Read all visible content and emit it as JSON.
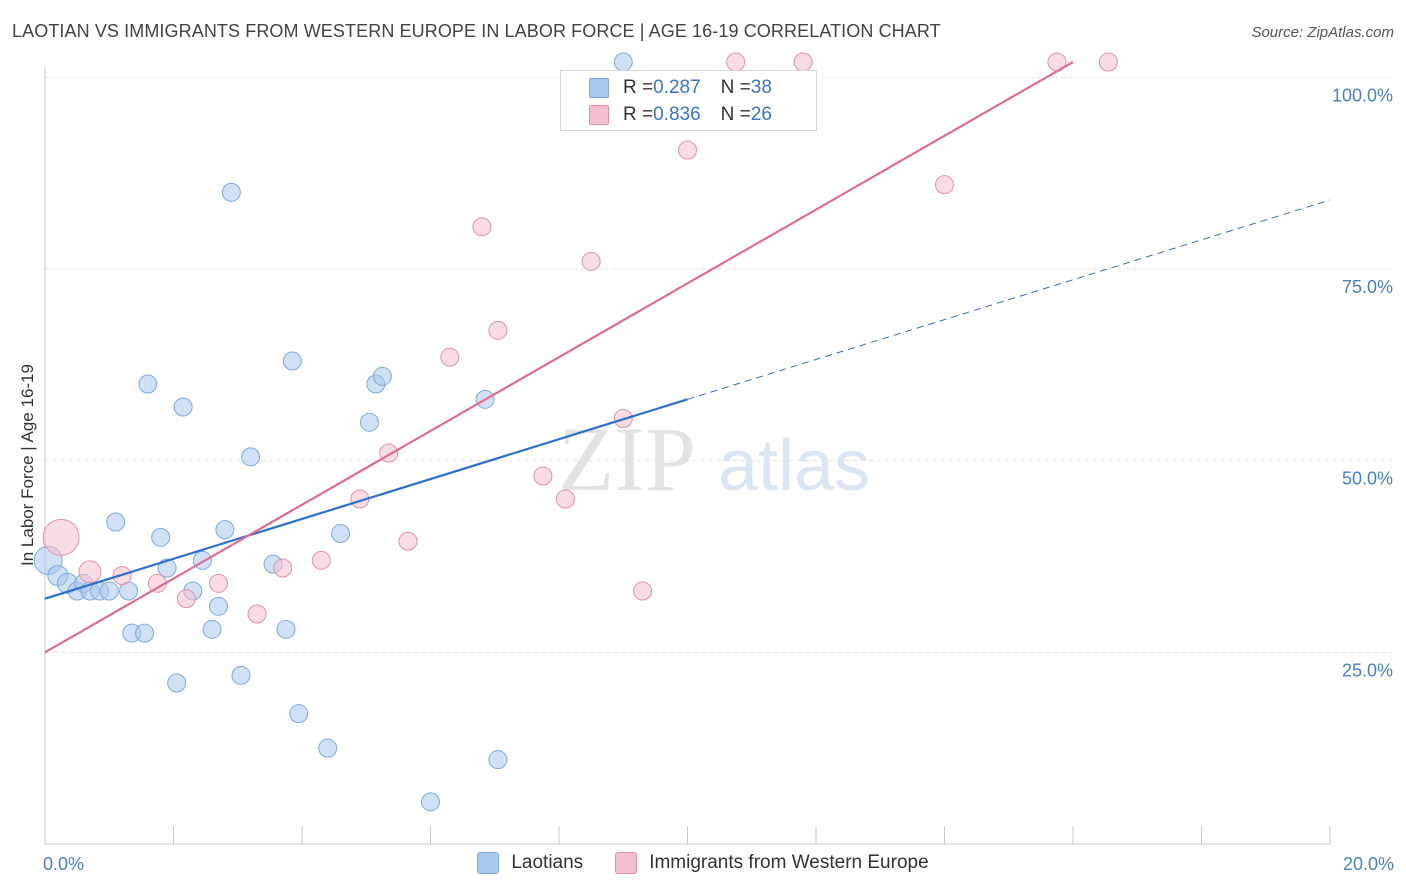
{
  "title": "LAOTIAN VS IMMIGRANTS FROM WESTERN EUROPE IN LABOR FORCE | AGE 16-19 CORRELATION CHART",
  "source": "Source: ZipAtlas.com",
  "watermark": {
    "zip": "ZIP",
    "atlas": "atlas"
  },
  "legend": {
    "rows": [
      {
        "r_label": "R = ",
        "r_value": "0.287",
        "n_label": "N = ",
        "n_value": "38",
        "color": "#a9c8ef",
        "border": "#7ea9de"
      },
      {
        "r_label": "R = ",
        "r_value": "0.836",
        "n_label": "N = ",
        "n_value": "26",
        "color": "#f6bfd0",
        "border": "#e68fab"
      }
    ]
  },
  "bottom_legend": [
    {
      "label": "Laotians",
      "color": "#a9c8ef",
      "border": "#7ea9de"
    },
    {
      "label": "Immigrants from Western Europe",
      "color": "#f6bfd0",
      "border": "#e68fab"
    }
  ],
  "chart_data": {
    "type": "scatter",
    "xlabel": "",
    "ylabel": "In Labor Force | Age 16-19",
    "xlim": [
      0,
      20
    ],
    "ylim": [
      0,
      102
    ],
    "x_tick_labels": [
      {
        "value": 0,
        "label": "0.0%"
      },
      {
        "value": 20,
        "label": "20.0%"
      }
    ],
    "y_tick_labels": [
      {
        "value": 25,
        "label": "25.0%"
      },
      {
        "value": 50,
        "label": "50.0%"
      },
      {
        "value": 75,
        "label": "75.0%"
      },
      {
        "value": 100,
        "label": "100.0%"
      }
    ],
    "grid": true,
    "series": [
      {
        "name": "Laotians",
        "color": "#a9c8ef",
        "line_color": "#2f6fcc",
        "points": [
          [
            0.05,
            37,
            14
          ],
          [
            0.2,
            35,
            10
          ],
          [
            0.35,
            34,
            10
          ],
          [
            0.5,
            33,
            9
          ],
          [
            0.6,
            34,
            9
          ],
          [
            0.7,
            33,
            9
          ],
          [
            0.85,
            33,
            9
          ],
          [
            1.0,
            33,
            9
          ],
          [
            1.1,
            42,
            9
          ],
          [
            1.3,
            33,
            9
          ],
          [
            1.35,
            27.5,
            9
          ],
          [
            1.55,
            27.5,
            9
          ],
          [
            1.6,
            60,
            9
          ],
          [
            1.8,
            40,
            9
          ],
          [
            1.9,
            36,
            9
          ],
          [
            2.05,
            21,
            9
          ],
          [
            2.15,
            57,
            9
          ],
          [
            2.3,
            33,
            9
          ],
          [
            2.45,
            37,
            9
          ],
          [
            2.6,
            28,
            9
          ],
          [
            2.7,
            31,
            9
          ],
          [
            2.8,
            41,
            9
          ],
          [
            2.9,
            85,
            9
          ],
          [
            3.05,
            22,
            9
          ],
          [
            3.2,
            50.5,
            9
          ],
          [
            3.55,
            36.5,
            9
          ],
          [
            3.75,
            28,
            9
          ],
          [
            3.85,
            63,
            9
          ],
          [
            3.95,
            17,
            9
          ],
          [
            4.4,
            12.5,
            9
          ],
          [
            4.6,
            40.5,
            9
          ],
          [
            5.05,
            55,
            9
          ],
          [
            5.15,
            60,
            9
          ],
          [
            5.25,
            61,
            9
          ],
          [
            6.0,
            5.5,
            9
          ],
          [
            6.85,
            58,
            9
          ],
          [
            7.05,
            11,
            9
          ],
          [
            9.0,
            102,
            9
          ]
        ],
        "trend_solid": [
          [
            0,
            32
          ],
          [
            10,
            58
          ]
        ],
        "trend_dashed": [
          [
            10,
            58
          ],
          [
            20,
            84
          ]
        ]
      },
      {
        "name": "Immigrants from Western Europe",
        "color": "#f6bfd0",
        "line_color": "#e06b93",
        "points": [
          [
            0.25,
            40,
            18
          ],
          [
            0.7,
            35.5,
            11
          ],
          [
            1.2,
            35,
            9
          ],
          [
            1.75,
            34,
            9
          ],
          [
            2.2,
            32,
            9
          ],
          [
            2.7,
            34,
            9
          ],
          [
            3.3,
            30,
            9
          ],
          [
            3.7,
            36,
            9
          ],
          [
            4.3,
            37,
            9
          ],
          [
            4.9,
            45,
            9
          ],
          [
            5.35,
            51,
            9
          ],
          [
            5.65,
            39.5,
            9
          ],
          [
            6.3,
            63.5,
            9
          ],
          [
            6.8,
            80.5,
            9
          ],
          [
            7.05,
            67,
            9
          ],
          [
            7.75,
            48,
            9
          ],
          [
            8.1,
            45,
            9
          ],
          [
            8.5,
            76,
            9
          ],
          [
            9.0,
            55.5,
            9
          ],
          [
            9.3,
            33,
            9
          ],
          [
            10.0,
            90.5,
            9
          ],
          [
            10.75,
            102,
            9
          ],
          [
            11.8,
            102,
            9
          ],
          [
            14.0,
            86,
            9
          ],
          [
            15.75,
            102,
            9
          ],
          [
            16.55,
            102,
            9
          ]
        ],
        "trend_solid": [
          [
            0,
            25
          ],
          [
            16,
            102
          ]
        ]
      }
    ]
  }
}
